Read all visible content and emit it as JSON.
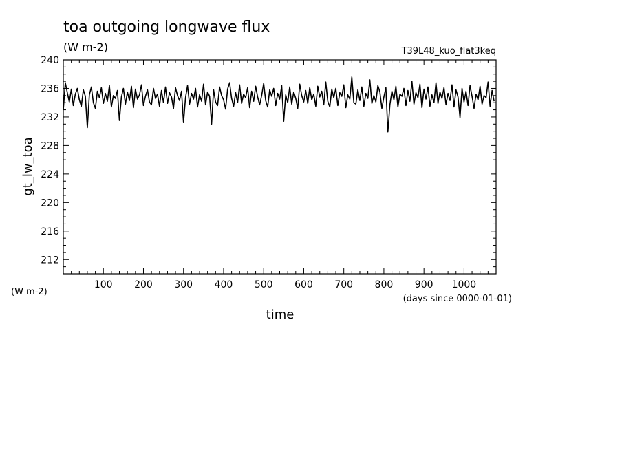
{
  "chart_data": {
    "type": "line",
    "title": "toa outgoing longwave flux",
    "subtitle": "(W m-2)",
    "run_label": "T39L48_kuo_flat3keq",
    "xlabel": "time",
    "x_unit": "(days since 0000-01-01)",
    "ylabel": "gt_lw_toa",
    "y_unit": "(W m-2)",
    "xlim": [
      0,
      1080
    ],
    "ylim": [
      210,
      240
    ],
    "x_ticks": [
      100,
      200,
      300,
      400,
      500,
      600,
      700,
      800,
      900,
      1000
    ],
    "y_ticks": [
      212,
      216,
      220,
      224,
      228,
      232,
      236,
      240
    ],
    "grid": false,
    "series": [
      {
        "color": "#000000",
        "x_step": 5,
        "values": [
          233.0,
          236.8,
          235.4,
          234.1,
          235.9,
          233.6,
          235.2,
          236.0,
          234.4,
          233.5,
          235.8,
          234.9,
          230.5,
          235.1,
          236.2,
          234.0,
          233.2,
          235.6,
          234.7,
          236.1,
          233.9,
          235.3,
          234.2,
          236.4,
          233.4,
          235.0,
          234.6,
          235.7,
          231.5,
          234.8,
          236.0,
          233.8,
          235.5,
          234.3,
          236.3,
          233.3,
          235.9,
          234.5,
          235.1,
          236.5,
          233.6,
          234.9,
          235.8,
          234.1,
          233.7,
          236.0,
          234.6,
          235.2,
          233.5,
          235.7,
          234.0,
          236.2,
          233.9,
          235.4,
          234.8,
          233.2,
          236.1,
          235.0,
          234.3,
          235.6,
          231.2,
          234.7,
          236.4,
          233.8,
          235.3,
          234.5,
          236.0,
          233.4,
          235.1,
          234.2,
          236.6,
          233.7,
          235.5,
          234.9,
          231.0,
          235.8,
          234.1,
          233.6,
          236.2,
          235.0,
          234.4,
          233.1,
          235.9,
          236.8,
          234.6,
          233.5,
          235.4,
          234.0,
          236.5,
          233.9,
          235.2,
          234.7,
          236.1,
          233.3,
          235.6,
          234.2,
          236.3,
          234.8,
          233.7,
          235.0,
          236.7,
          234.3,
          233.4,
          235.8,
          234.9,
          236.0,
          233.6,
          235.3,
          234.5,
          236.4,
          231.4,
          235.1,
          234.0,
          236.2,
          233.8,
          235.5,
          234.6,
          233.2,
          236.6,
          235.0,
          234.1,
          235.7,
          233.9,
          236.1,
          234.4,
          235.2,
          233.5,
          236.3,
          234.8,
          235.6,
          233.7,
          236.9,
          234.2,
          233.4,
          235.9,
          234.7,
          236.0,
          233.6,
          235.4,
          234.9,
          236.5,
          233.3,
          235.1,
          234.5,
          237.6,
          234.0,
          233.8,
          235.8,
          234.3,
          236.2,
          233.5,
          235.3,
          234.6,
          237.2,
          233.9,
          235.0,
          234.1,
          236.4,
          235.5,
          233.2,
          234.8,
          236.1,
          229.9,
          233.7,
          235.6,
          234.4,
          236.3,
          233.4,
          235.2,
          234.9,
          236.0,
          233.6,
          235.7,
          234.2,
          237.0,
          233.8,
          235.4,
          234.7,
          236.6,
          233.3,
          235.9,
          234.5,
          236.2,
          233.5,
          235.1,
          234.0,
          236.8,
          233.9,
          235.5,
          234.6,
          236.1,
          233.7,
          235.3,
          234.3,
          236.5,
          233.4,
          235.8,
          234.8,
          231.9,
          236.0,
          234.1,
          235.6,
          233.6,
          236.4,
          234.9,
          233.2,
          235.2,
          234.4,
          236.3,
          233.8,
          235.0,
          234.7,
          236.9,
          233.5,
          235.7,
          234.2
        ]
      }
    ]
  }
}
